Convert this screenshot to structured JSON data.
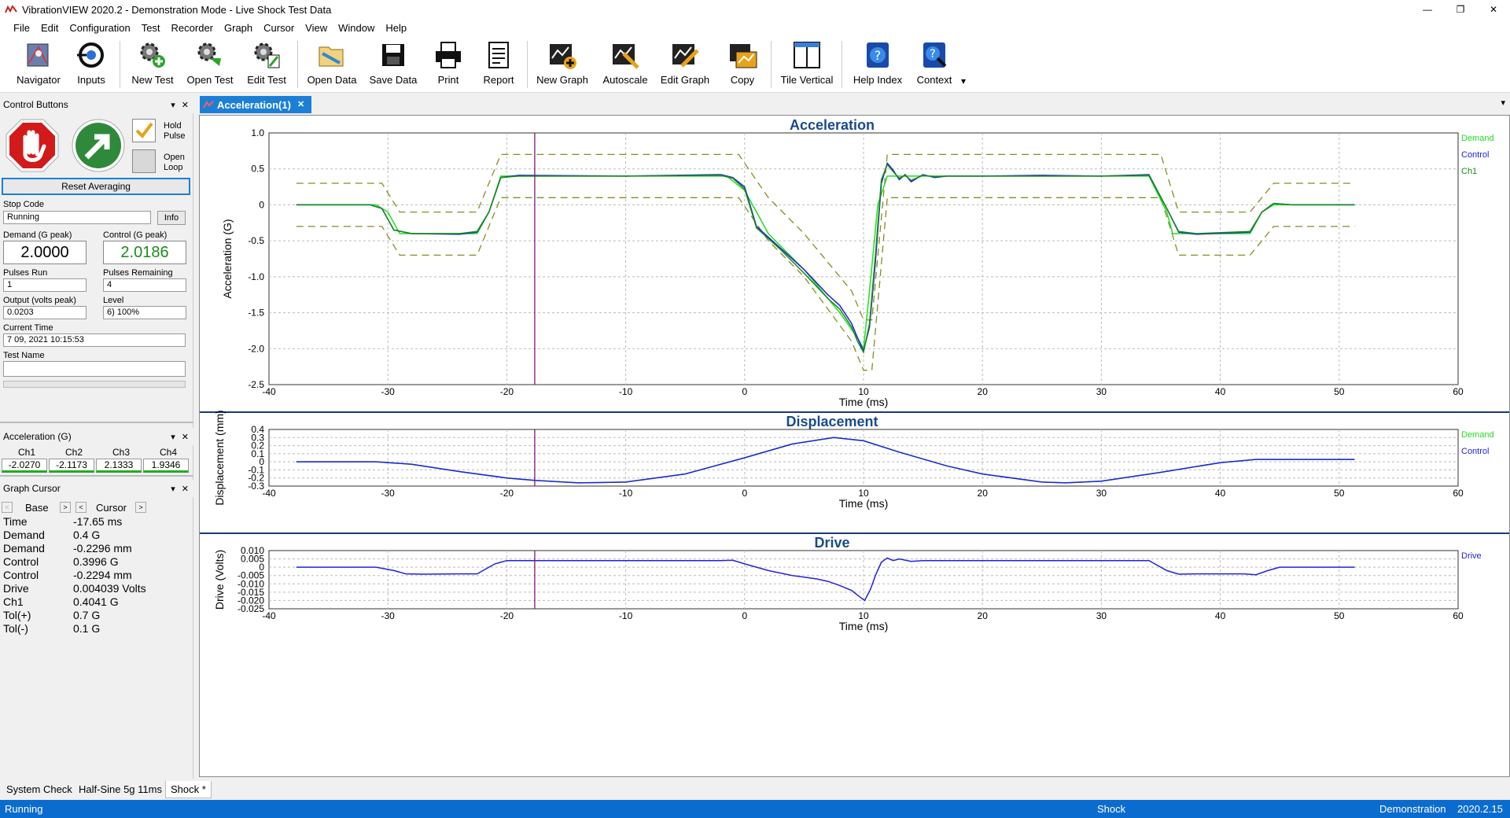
{
  "window": {
    "title": "VibrationVIEW 2020.2 - Demonstration Mode - Live Shock Test Data",
    "minimize": "—",
    "restore": "❐",
    "close": "✕"
  },
  "menu": [
    "File",
    "Edit",
    "Configuration",
    "Test",
    "Recorder",
    "Graph",
    "Cursor",
    "View",
    "Window",
    "Help"
  ],
  "toolbar": {
    "navigator": "Navigator",
    "inputs": "Inputs",
    "new_test": "New Test",
    "open_test": "Open Test",
    "edit_test": "Edit Test",
    "open_data": "Open Data",
    "save_data": "Save Data",
    "print": "Print",
    "report": "Report",
    "new_graph": "New Graph",
    "autoscale": "Autoscale",
    "edit_graph": "Edit Graph",
    "copy": "Copy",
    "tile_vertical": "Tile Vertical",
    "help_index": "Help Index",
    "context": "Context",
    "overflow": "▾"
  },
  "control_panel": {
    "header": "Control Buttons",
    "hold_pulse": "Hold\nPulse",
    "hold_pulse_checked": true,
    "open_loop": "Open\nLoop",
    "reset_averaging": "Reset Averaging",
    "stop_code_label": "Stop Code",
    "stop_code_value": "Running",
    "info_button": "Info",
    "demand_label": "Demand (G peak)",
    "demand_value": "2.0000",
    "control_label": "Control (G peak)",
    "control_value": "2.0186",
    "pulses_run_label": "Pulses Run",
    "pulses_run_value": "1",
    "pulses_remaining_label": "Pulses Remaining",
    "pulses_remaining_value": "4",
    "output_label": "Output (volts peak)",
    "output_value": "0.0203",
    "level_label": "Level",
    "level_value": "6) 100%",
    "current_time_label": "Current Time",
    "current_time_value": "7 09, 2021 10:15:53",
    "test_name_label": "Test Name",
    "test_name_value": ""
  },
  "accel_panel": {
    "header": "Acceleration (G)",
    "channels": [
      {
        "name": "Ch1",
        "value": "-2.0270"
      },
      {
        "name": "Ch2",
        "value": "-2.1173"
      },
      {
        "name": "Ch3",
        "value": "2.1333"
      },
      {
        "name": "Ch4",
        "value": "1.9346"
      }
    ]
  },
  "cursor_panel": {
    "header": "Graph Cursor",
    "base_label": "Base",
    "cursor_label": "Cursor",
    "rows": [
      {
        "name": "Time",
        "value": "-17.65  ms"
      },
      {
        "name": "Demand",
        "value": "0.4  G"
      },
      {
        "name": "Demand",
        "value": "-0.2296  mm"
      },
      {
        "name": "Control",
        "value": "0.3996  G"
      },
      {
        "name": "Control",
        "value": "-0.2294  mm"
      },
      {
        "name": "Drive",
        "value": "0.004039  Volts"
      },
      {
        "name": "Ch1",
        "value": "0.4041  G"
      },
      {
        "name": "Tol(+)",
        "value": "0.7  G"
      },
      {
        "name": "Tol(-)",
        "value": "0.1  G"
      }
    ]
  },
  "doc_tab": {
    "label": "Acceleration(1)",
    "close": "✕"
  },
  "bottom_tabs": [
    "System Check",
    "Half-Sine 5g 11ms",
    "Shock *"
  ],
  "status": {
    "left": "Running",
    "mid": "Shock",
    "mode": "Demonstration",
    "version": "2020.2.15"
  },
  "colors": {
    "demand": "#22dd22",
    "control": "#2222dd",
    "ch1": "#1a8a1a",
    "tolerance": "#8a8a22",
    "cursor": "#7a1a7a",
    "title": "#1a4a8a"
  },
  "chart_data": [
    {
      "type": "line",
      "title": "Acceleration",
      "xlabel": "Time (ms)",
      "ylabel": "Acceleration (G)",
      "xlim": [
        -40,
        60
      ],
      "ylim": [
        -2.5,
        1.0
      ],
      "xticks": [
        "-40",
        "-30",
        "-20",
        "-10",
        "0",
        "10",
        "20",
        "30",
        "40",
        "50",
        "60"
      ],
      "yticks": [
        "1.0",
        "0.5",
        "0",
        "-0.5",
        "-1.0",
        "-1.5",
        "-2.0",
        "-2.5"
      ],
      "legend": [
        "Demand",
        "Control",
        "Ch1"
      ],
      "legend_position": "right",
      "grid": true,
      "cursor_x": -17.65,
      "series": [
        {
          "name": "Demand",
          "x": [
            -37.7,
            -31,
            -30,
            -29,
            -22.5,
            -21.5,
            -20.5,
            -1.5,
            0,
            2,
            5,
            8,
            9.5,
            10,
            10.5,
            11.2,
            12,
            34,
            35.5,
            36,
            42.5,
            43.5,
            44.5,
            51.3
          ],
          "y": [
            0,
            0,
            -0.1,
            -0.4,
            -0.4,
            -0.1,
            0.4,
            0.4,
            0.2,
            -0.4,
            -0.9,
            -1.5,
            -1.85,
            -2.0,
            -1.2,
            0,
            0.4,
            0.4,
            -0.1,
            -0.4,
            -0.4,
            -0.1,
            0,
            0
          ]
        },
        {
          "name": "Control",
          "x": [
            -37.7,
            -31.5,
            -30.5,
            -29.5,
            -28,
            -24,
            -22.5,
            -21.5,
            -20.5,
            -19,
            -10,
            -2,
            -1,
            0,
            1,
            3,
            5,
            7,
            8,
            9,
            9.5,
            10,
            10.5,
            11,
            11.5,
            12,
            12.5,
            13,
            13.5,
            14,
            15,
            16,
            17,
            20,
            25,
            30,
            34,
            35.5,
            36.5,
            38,
            42.5,
            43.5,
            44.5,
            46,
            51.3
          ],
          "y": [
            0,
            0,
            -0.05,
            -0.35,
            -0.4,
            -0.41,
            -0.38,
            -0.1,
            0.38,
            0.41,
            0.4,
            0.42,
            0.38,
            0.25,
            -0.3,
            -0.6,
            -0.9,
            -1.25,
            -1.4,
            -1.65,
            -1.85,
            -2.03,
            -1.7,
            -0.8,
            0.3,
            0.58,
            0.48,
            0.35,
            0.42,
            0.32,
            0.42,
            0.38,
            0.4,
            0.4,
            0.41,
            0.4,
            0.42,
            -0.05,
            -0.38,
            -0.41,
            -0.38,
            -0.1,
            0.02,
            0,
            0
          ]
        },
        {
          "name": "Ch1",
          "x": [
            -37.7,
            -31.5,
            -30.5,
            -29.5,
            -28,
            -24,
            -22.5,
            -21.5,
            -20.5,
            -19,
            -10,
            -2,
            -1,
            0,
            1,
            3,
            5,
            7,
            8,
            9,
            9.5,
            10,
            10.5,
            11,
            11.5,
            12,
            12.5,
            13,
            13.5,
            14,
            15,
            16,
            17,
            20,
            25,
            30,
            34,
            35.5,
            36.5,
            38,
            42.5,
            43.5,
            44.5,
            46,
            51.3
          ],
          "y": [
            0,
            0,
            -0.05,
            -0.35,
            -0.4,
            -0.4,
            -0.37,
            -0.1,
            0.38,
            0.4,
            0.4,
            0.41,
            0.37,
            0.22,
            -0.32,
            -0.62,
            -0.95,
            -1.3,
            -1.45,
            -1.7,
            -1.9,
            -2.05,
            -1.65,
            -0.7,
            0.35,
            0.56,
            0.46,
            0.37,
            0.41,
            0.34,
            0.41,
            0.39,
            0.4,
            0.4,
            0.4,
            0.4,
            0.41,
            -0.05,
            -0.37,
            -0.4,
            -0.37,
            -0.1,
            0.02,
            0,
            0
          ]
        },
        {
          "name": "Tol(+)",
          "x": [
            -37.7,
            -30.5,
            -29,
            -22.5,
            -20.5,
            -19.5,
            -0.5,
            2,
            5,
            9,
            10,
            10.7,
            12,
            35,
            36.5,
            42.5,
            44.5,
            51.3
          ],
          "y": [
            0.3,
            0.3,
            -0.1,
            -0.1,
            0.7,
            0.7,
            0.7,
            0.1,
            -0.4,
            -1.2,
            -1.6,
            -1.6,
            0.7,
            0.7,
            -0.1,
            -0.1,
            0.3,
            0.3
          ]
        },
        {
          "name": "Tol(-)",
          "x": [
            -37.7,
            -30.5,
            -29,
            -22.5,
            -20.5,
            -19.5,
            -0.5,
            2,
            5,
            9,
            10,
            10.7,
            12,
            35,
            36.5,
            42.5,
            44.5,
            51.3
          ],
          "y": [
            -0.3,
            -0.3,
            -0.7,
            -0.7,
            0.1,
            0.1,
            0.1,
            -0.5,
            -1.0,
            -1.9,
            -2.3,
            -2.3,
            0.1,
            0.1,
            -0.7,
            -0.7,
            -0.3,
            -0.3
          ]
        }
      ]
    },
    {
      "type": "line",
      "title": "Displacement",
      "xlabel": "Time (ms)",
      "ylabel": "Displacement (mm)",
      "xlim": [
        -40,
        60
      ],
      "ylim": [
        -0.3,
        0.4
      ],
      "xticks": [
        "-40",
        "-30",
        "-20",
        "-10",
        "0",
        "10",
        "20",
        "30",
        "40",
        "50",
        "60"
      ],
      "yticks": [
        "0.4",
        "0.3",
        "0.2",
        "0.1",
        "0",
        "-0.1",
        "-0.2",
        "-0.3"
      ],
      "legend": [
        "Demand",
        "Control"
      ],
      "legend_position": "right",
      "grid": true,
      "cursor_x": -17.65,
      "series": [
        {
          "name": "Demand",
          "x": [
            -37.7,
            -31,
            -28,
            -24,
            -20,
            -17.65,
            -14,
            -10,
            -5,
            0,
            4,
            7.5,
            10,
            13,
            17,
            20,
            25,
            27,
            30,
            35,
            40,
            43,
            51.3
          ],
          "y": [
            0,
            0,
            -0.03,
            -0.12,
            -0.2,
            -0.23,
            -0.26,
            -0.25,
            -0.15,
            0.05,
            0.22,
            0.3,
            0.26,
            0.12,
            -0.05,
            -0.15,
            -0.25,
            -0.26,
            -0.24,
            -0.13,
            -0.01,
            0.03,
            0.03
          ]
        },
        {
          "name": "Control",
          "x": [
            -37.7,
            -31,
            -28,
            -24,
            -20,
            -17.65,
            -14,
            -10,
            -5,
            0,
            4,
            7.5,
            10,
            13,
            17,
            20,
            25,
            27,
            30,
            35,
            40,
            43,
            51.3
          ],
          "y": [
            0,
            0,
            -0.03,
            -0.12,
            -0.2,
            -0.229,
            -0.26,
            -0.25,
            -0.15,
            0.05,
            0.22,
            0.3,
            0.26,
            0.12,
            -0.05,
            -0.15,
            -0.25,
            -0.26,
            -0.24,
            -0.13,
            -0.01,
            0.03,
            0.03
          ]
        }
      ]
    },
    {
      "type": "line",
      "title": "Drive",
      "xlabel": "Time (ms)",
      "ylabel": "Drive (Volts)",
      "xlim": [
        -40,
        60
      ],
      "ylim": [
        -0.025,
        0.01
      ],
      "xticks": [
        "-40",
        "-30",
        "-20",
        "-10",
        "0",
        "10",
        "20",
        "30",
        "40",
        "50",
        "60"
      ],
      "yticks": [
        "0.010",
        "0.005",
        "0",
        "-0.005",
        "-0.010",
        "-0.015",
        "-0.020",
        "-0.025"
      ],
      "legend": [
        "Drive"
      ],
      "legend_position": "right",
      "grid": true,
      "cursor_x": -17.65,
      "series": [
        {
          "name": "Drive",
          "x": [
            -37.7,
            -31,
            -29.5,
            -28.5,
            -27,
            -24,
            -22.5,
            -21,
            -20,
            -10,
            -2,
            -1,
            0,
            2,
            4,
            6,
            7,
            8,
            9,
            9.7,
            10.1,
            10.6,
            11,
            11.5,
            12,
            12.5,
            13,
            14,
            15,
            20,
            25,
            30,
            34,
            35.5,
            36.5,
            38,
            42,
            43,
            44,
            45,
            51.3
          ],
          "y": [
            0,
            0,
            -0.002,
            -0.004,
            -0.0042,
            -0.004,
            -0.004,
            0.002,
            0.004,
            0.004,
            0.004,
            0.0042,
            0.002,
            -0.002,
            -0.005,
            -0.007,
            -0.0085,
            -0.011,
            -0.014,
            -0.018,
            -0.02,
            -0.013,
            -0.005,
            0.003,
            0.0055,
            0.004,
            0.005,
            0.0035,
            0.004,
            0.004,
            0.004,
            0.004,
            0.004,
            -0.002,
            -0.0042,
            -0.004,
            -0.004,
            -0.0045,
            -0.002,
            0,
            0
          ]
        }
      ]
    }
  ]
}
